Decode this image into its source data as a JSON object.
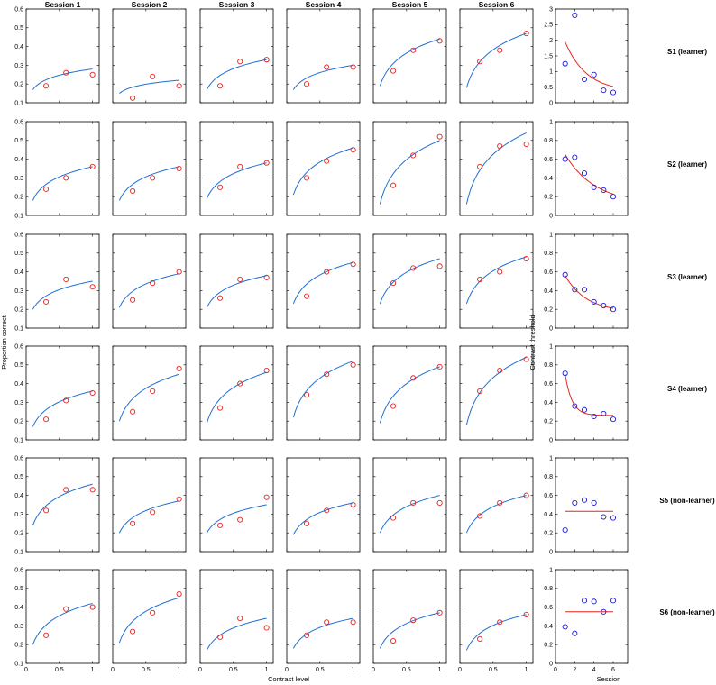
{
  "figure": {
    "xlabel_left": "Contrast level",
    "ylabel_left": "Proportion correct",
    "xlabel_right": "Session",
    "ylabel_right": "Contrast threshold"
  },
  "chart_data": [
    {
      "type": "scatter",
      "panel_group": "psychometric",
      "columns": [
        "Session 1",
        "Session 2",
        "Session 3",
        "Session 4",
        "Session 5",
        "Session 6"
      ],
      "rows": [
        "S1 (learner)",
        "S2 (learner)",
        "S3 (learner)",
        "S4 (learner)",
        "S5 (non-learner)",
        "S6 (non-learner)"
      ],
      "xlabel": "Contrast level",
      "ylabel": "Proportion correct",
      "xlim": [
        0,
        1.1
      ],
      "ylim": [
        0.1,
        0.6
      ],
      "xticks": [
        0,
        0.5,
        1
      ],
      "yticks": [
        0.1,
        0.2,
        0.3,
        0.4,
        0.5,
        0.6
      ],
      "x": [
        0.3,
        0.6,
        1.0
      ],
      "fit_x_range": [
        0.1,
        1.0
      ],
      "points": [
        [
          [
            0.19,
            0.26,
            0.25
          ],
          [
            0.125,
            0.24,
            0.19
          ],
          [
            0.19,
            0.32,
            0.33
          ],
          [
            0.2,
            0.29,
            0.29
          ],
          [
            0.27,
            0.38,
            0.43
          ],
          [
            0.32,
            0.38,
            0.47
          ]
        ],
        [
          [
            0.24,
            0.3,
            0.36
          ],
          [
            0.23,
            0.3,
            0.35
          ],
          [
            0.25,
            0.36,
            0.38
          ],
          [
            0.3,
            0.39,
            0.45
          ],
          [
            0.26,
            0.42,
            0.52
          ],
          [
            0.36,
            0.47,
            0.48
          ]
        ],
        [
          [
            0.24,
            0.36,
            0.32
          ],
          [
            0.25,
            0.34,
            0.4
          ],
          [
            0.26,
            0.36,
            0.37
          ],
          [
            0.27,
            0.4,
            0.44
          ],
          [
            0.34,
            0.42,
            0.43
          ],
          [
            0.36,
            0.4,
            0.47
          ]
        ],
        [
          [
            0.21,
            0.31,
            0.35
          ],
          [
            0.25,
            0.36,
            0.48
          ],
          [
            0.27,
            0.4,
            0.47
          ],
          [
            0.34,
            0.45,
            0.5
          ],
          [
            0.28,
            0.43,
            0.49
          ],
          [
            0.36,
            0.47,
            0.53
          ]
        ],
        [
          [
            0.32,
            0.43,
            0.43
          ],
          [
            0.25,
            0.31,
            0.38
          ],
          [
            0.24,
            0.27,
            0.39
          ],
          [
            0.25,
            0.32,
            0.35
          ],
          [
            0.28,
            0.36,
            0.36
          ],
          [
            0.29,
            0.36,
            0.4
          ]
        ],
        [
          [
            0.25,
            0.39,
            0.4
          ],
          [
            0.27,
            0.37,
            0.47
          ],
          [
            0.24,
            0.34,
            0.29
          ],
          [
            0.25,
            0.32,
            0.32
          ],
          [
            0.22,
            0.33,
            0.37
          ],
          [
            0.23,
            0.32,
            0.36
          ]
        ]
      ],
      "fit_curves": [
        [
          [
            0.17,
            0.28
          ],
          [
            0.15,
            0.22
          ],
          [
            0.17,
            0.33
          ],
          [
            0.17,
            0.3
          ],
          [
            0.19,
            0.44
          ],
          [
            0.18,
            0.47
          ]
        ],
        [
          [
            0.18,
            0.36
          ],
          [
            0.18,
            0.36
          ],
          [
            0.19,
            0.38
          ],
          [
            0.21,
            0.46
          ],
          [
            0.16,
            0.5
          ],
          [
            0.16,
            0.54
          ]
        ],
        [
          [
            0.2,
            0.35
          ],
          [
            0.21,
            0.39
          ],
          [
            0.21,
            0.38
          ],
          [
            0.23,
            0.45
          ],
          [
            0.23,
            0.47
          ],
          [
            0.23,
            0.48
          ]
        ],
        [
          [
            0.17,
            0.36
          ],
          [
            0.2,
            0.45
          ],
          [
            0.19,
            0.46
          ],
          [
            0.22,
            0.52
          ],
          [
            0.19,
            0.49
          ],
          [
            0.18,
            0.54
          ]
        ],
        [
          [
            0.24,
            0.46
          ],
          [
            0.2,
            0.37
          ],
          [
            0.2,
            0.35
          ],
          [
            0.19,
            0.36
          ],
          [
            0.2,
            0.4
          ],
          [
            0.2,
            0.4
          ]
        ],
        [
          [
            0.2,
            0.42
          ],
          [
            0.21,
            0.45
          ],
          [
            0.17,
            0.34
          ],
          [
            0.18,
            0.34
          ],
          [
            0.18,
            0.37
          ],
          [
            0.17,
            0.36
          ]
        ]
      ]
    },
    {
      "type": "scatter",
      "panel_group": "threshold",
      "rows": [
        "S1 (learner)",
        "S2 (learner)",
        "S3 (learner)",
        "S4 (learner)",
        "S5 (non-learner)",
        "S6 (non-learner)"
      ],
      "xlabel": "Session",
      "ylabel": "Contrast threshold",
      "xlim": [
        0,
        7.5
      ],
      "xticks": [
        0,
        2,
        4,
        6
      ],
      "ylims": [
        [
          0,
          3
        ],
        [
          0,
          1
        ],
        [
          0,
          1
        ],
        [
          0,
          1
        ],
        [
          0,
          1
        ],
        [
          0,
          1
        ]
      ],
      "yticks": [
        [
          0,
          0.5,
          1,
          1.5,
          2,
          2.5,
          3
        ],
        [
          0,
          0.2,
          0.4,
          0.6,
          0.8,
          1
        ],
        [
          0,
          0.2,
          0.4,
          0.6,
          0.8,
          1
        ],
        [
          0,
          0.2,
          0.4,
          0.6,
          0.8,
          1
        ],
        [
          0,
          0.2,
          0.4,
          0.6,
          0.8,
          1
        ],
        [
          0,
          0.2,
          0.4,
          0.6,
          0.8,
          1
        ]
      ],
      "sessions": [
        1,
        2,
        3,
        4,
        5,
        6
      ],
      "values": [
        [
          1.25,
          2.8,
          0.75,
          0.9,
          0.4,
          0.33
        ],
        [
          0.6,
          0.62,
          0.45,
          0.3,
          0.27,
          0.2
        ],
        [
          0.57,
          0.41,
          0.41,
          0.28,
          0.24,
          0.2
        ],
        [
          0.71,
          0.36,
          0.32,
          0.25,
          0.28,
          0.22
        ],
        [
          0.23,
          0.52,
          0.55,
          0.52,
          0.37,
          0.36
        ],
        [
          0.39,
          0.32,
          0.67,
          0.66,
          0.55,
          0.67
        ]
      ],
      "fit_curves": [
        {
          "kind": "exp",
          "a": 1.95,
          "b": 0.35,
          "k": 0.45
        },
        {
          "kind": "exp",
          "a": 0.65,
          "b": 0.12,
          "k": 0.32
        },
        {
          "kind": "exp",
          "a": 0.56,
          "b": 0.17,
          "k": 0.45
        },
        {
          "kind": "exp",
          "a": 0.7,
          "b": 0.26,
          "k": 1.4
        },
        {
          "kind": "flat",
          "a": 0.43
        },
        {
          "kind": "flat",
          "a": 0.55
        }
      ]
    }
  ]
}
